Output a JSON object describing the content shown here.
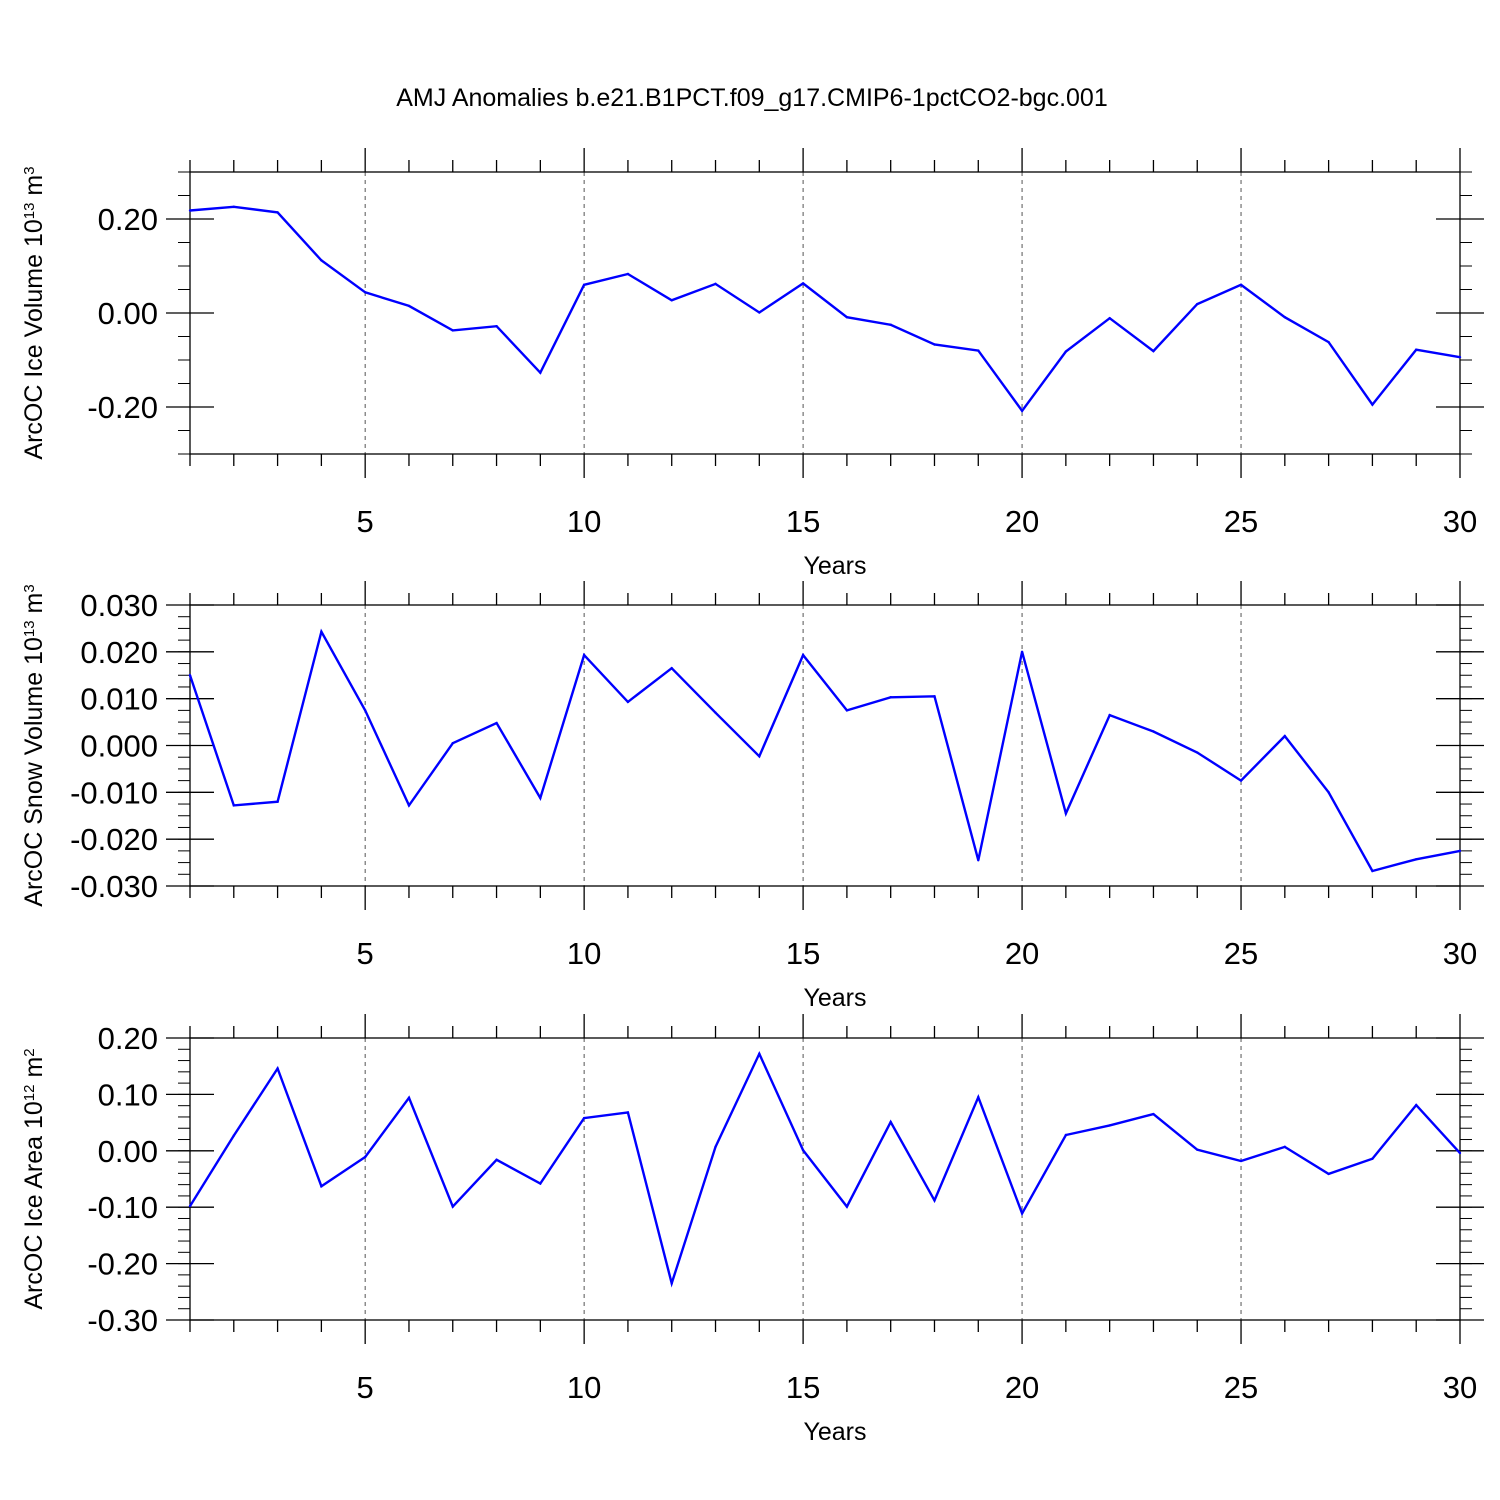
{
  "figure": {
    "title": "AMJ Anomalies b.e21.B1PCT.f09_g17.CMIP6-1pctCO2-bgc.001"
  },
  "colors": {
    "series": "#0000ff",
    "axis": "#000000",
    "grid": "#555555"
  },
  "chart_data": [
    {
      "type": "line",
      "xlabel": "Years",
      "ylabel": {
        "base": "ArcOC Ice Volume 10",
        "exponent": "13",
        "unit": " m",
        "unit_exponent": "3"
      },
      "xlim": [
        1,
        30
      ],
      "ylim": [
        -0.3,
        0.3
      ],
      "xticks": [
        5,
        10,
        15,
        20,
        25,
        30
      ],
      "yticks": [
        0.2,
        0.0,
        -0.2
      ],
      "ytick_labels": [
        "0.20",
        "0.00",
        "-0.20"
      ],
      "ytick_minor_step": 0.05,
      "grid": {
        "x": [
          5,
          10,
          15,
          20,
          25
        ],
        "style": "dashed"
      },
      "x": [
        1,
        2,
        3,
        4,
        5,
        6,
        7,
        8,
        9,
        10,
        11,
        12,
        13,
        14,
        15,
        16,
        17,
        18,
        19,
        20,
        21,
        22,
        23,
        24,
        25,
        26,
        27,
        28,
        29,
        30
      ],
      "values": [
        0.218,
        0.226,
        0.214,
        0.112,
        0.044,
        0.015,
        -0.037,
        -0.028,
        -0.127,
        0.06,
        0.083,
        0.027,
        0.062,
        0.001,
        0.063,
        -0.009,
        -0.025,
        -0.067,
        -0.08,
        -0.208,
        -0.082,
        -0.011,
        -0.081,
        0.019,
        0.06,
        -0.009,
        -0.062,
        -0.195,
        -0.078,
        -0.094
      ]
    },
    {
      "type": "line",
      "xlabel": "Years",
      "ylabel": {
        "base": "ArcOC Snow Volume 10",
        "exponent": "13",
        "unit": " m",
        "unit_exponent": "3"
      },
      "xlim": [
        1,
        30
      ],
      "ylim": [
        -0.03,
        0.03
      ],
      "xticks": [
        5,
        10,
        15,
        20,
        25,
        30
      ],
      "yticks": [
        0.03,
        0.02,
        0.01,
        0.0,
        -0.01,
        -0.02,
        -0.03
      ],
      "ytick_labels": [
        "0.030",
        "0.020",
        "0.010",
        "0.000",
        "-0.010",
        "-0.020",
        "-0.030"
      ],
      "ytick_minor_step": 0.0025,
      "grid": {
        "x": [
          5,
          10,
          15,
          20,
          25
        ],
        "style": "dashed"
      },
      "x": [
        1,
        2,
        3,
        4,
        5,
        6,
        7,
        8,
        9,
        10,
        11,
        12,
        13,
        14,
        15,
        16,
        17,
        18,
        19,
        20,
        21,
        22,
        23,
        24,
        25,
        26,
        27,
        28,
        29,
        30
      ],
      "values": [
        0.015,
        -0.0128,
        -0.012,
        0.0243,
        0.0075,
        -0.0128,
        0.0005,
        0.0048,
        -0.0112,
        0.0193,
        0.0093,
        0.0165,
        0.007,
        -0.0023,
        0.0193,
        0.0075,
        0.0103,
        0.0105,
        -0.0245,
        0.02,
        -0.0145,
        0.0065,
        0.003,
        -0.0015,
        -0.0075,
        0.002,
        -0.01,
        -0.0268,
        -0.0243,
        -0.0225
      ]
    },
    {
      "type": "line",
      "xlabel": "Years",
      "ylabel": {
        "base": "ArcOC Ice Area 10",
        "exponent": "12",
        "unit": " m",
        "unit_exponent": "2"
      },
      "xlim": [
        1,
        30
      ],
      "ylim": [
        -0.3,
        0.2
      ],
      "xticks": [
        5,
        10,
        15,
        20,
        25,
        30
      ],
      "yticks": [
        0.2,
        0.1,
        0.0,
        -0.1,
        -0.2,
        -0.3
      ],
      "ytick_labels": [
        "0.20",
        "0.10",
        "0.00",
        "-0.10",
        "-0.20",
        "-0.30"
      ],
      "ytick_minor_step": 0.02,
      "grid": {
        "x": [
          5,
          10,
          15,
          20,
          25
        ],
        "style": "dashed"
      },
      "x": [
        1,
        2,
        3,
        4,
        5,
        6,
        7,
        8,
        9,
        10,
        11,
        12,
        13,
        14,
        15,
        16,
        17,
        18,
        19,
        20,
        21,
        22,
        23,
        24,
        25,
        26,
        27,
        28,
        29,
        30
      ],
      "values": [
        -0.098,
        0.027,
        0.146,
        -0.063,
        -0.011,
        0.094,
        -0.099,
        -0.016,
        -0.058,
        0.058,
        0.068,
        -0.235,
        0.007,
        0.172,
        0.001,
        -0.099,
        0.051,
        -0.088,
        0.095,
        -0.111,
        0.028,
        0.045,
        0.065,
        0.002,
        -0.018,
        0.007,
        -0.041,
        -0.014,
        0.081,
        -0.004
      ]
    }
  ]
}
